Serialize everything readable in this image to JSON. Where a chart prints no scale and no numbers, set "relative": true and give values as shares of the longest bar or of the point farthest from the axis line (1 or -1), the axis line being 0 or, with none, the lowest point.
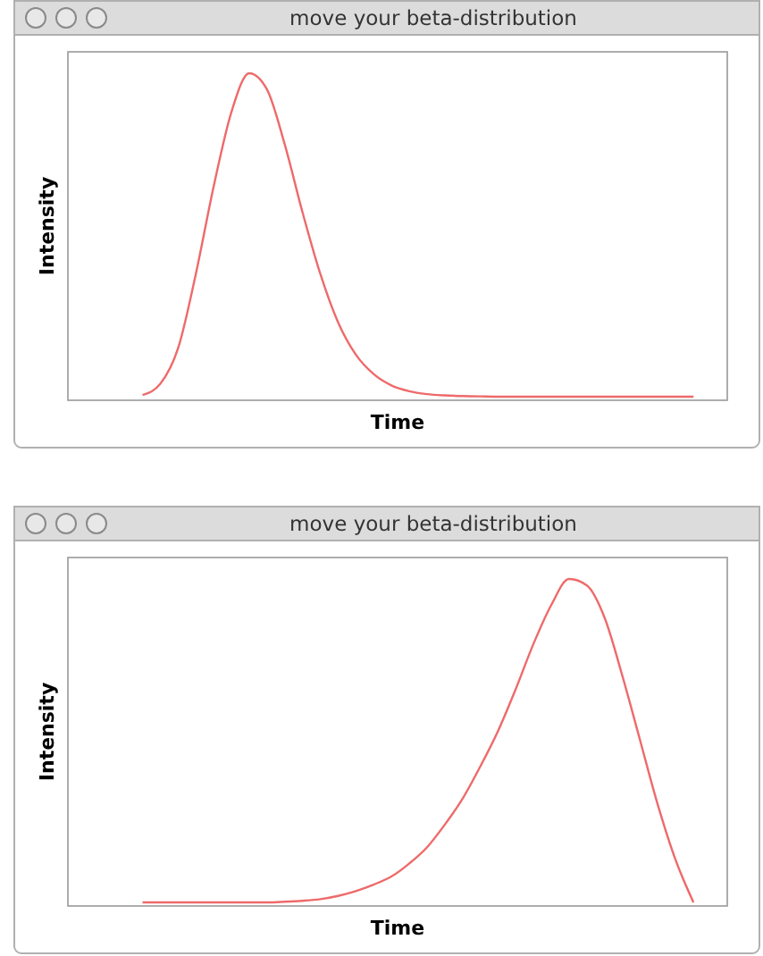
{
  "chart_data": [
    {
      "type": "line",
      "title": "move your beta-distribution",
      "xlabel": "Time",
      "ylabel": "Intensity",
      "relative": true,
      "categories": [
        null,
        null,
        null,
        null,
        null,
        null,
        null,
        null,
        null,
        null,
        null,
        null,
        null,
        null,
        null,
        null,
        null,
        null,
        null,
        null,
        null,
        null,
        null,
        null,
        null,
        null,
        null,
        null,
        null,
        null,
        null,
        null,
        null,
        null,
        null,
        null,
        null,
        null
      ],
      "series": [
        {
          "color": "#ee6a6a",
          "values": [
            null,
            null,
            null,
            null,
            0.005,
            0.04,
            0.15,
            0.38,
            0.65,
            0.88,
            1.0,
            0.95,
            0.78,
            0.57,
            0.38,
            0.23,
            0.13,
            0.07,
            0.035,
            0.017,
            0.008,
            0.004,
            0.002,
            0.001,
            0,
            0,
            0,
            0,
            0,
            0,
            0,
            0,
            0,
            0,
            0,
            0,
            null,
            null
          ]
        }
      ]
    },
    {
      "type": "line",
      "title": "move your beta-distribution",
      "xlabel": "Time",
      "ylabel": "Intensity",
      "relative": true,
      "categories": [
        null,
        null,
        null,
        null,
        null,
        null,
        null,
        null,
        null,
        null,
        null,
        null,
        null,
        null,
        null,
        null,
        null,
        null,
        null,
        null,
        null,
        null,
        null,
        null,
        null,
        null,
        null,
        null,
        null,
        null,
        null,
        null,
        null,
        null,
        null,
        null,
        null,
        null
      ],
      "series": [
        {
          "color": "#ee6a6a",
          "values": [
            null,
            null,
            null,
            null,
            0,
            0,
            0,
            0,
            0,
            0,
            0,
            0,
            0.002,
            0.005,
            0.01,
            0.02,
            0.035,
            0.055,
            0.08,
            0.12,
            0.17,
            0.24,
            0.32,
            0.42,
            0.53,
            0.66,
            0.8,
            0.92,
            1.0,
            0.98,
            0.88,
            0.7,
            0.5,
            0.3,
            0.13,
            0,
            null,
            null
          ]
        }
      ]
    }
  ]
}
